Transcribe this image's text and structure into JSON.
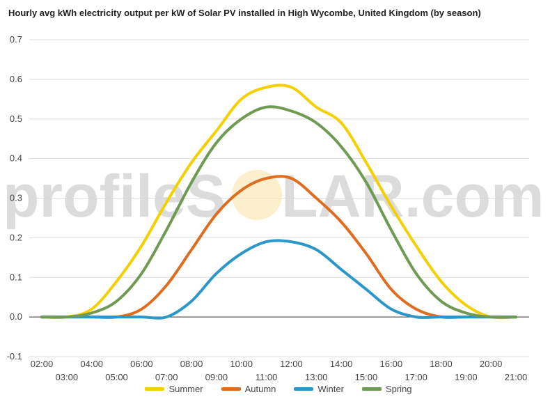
{
  "watermark": {
    "left": "profileS",
    "right": "LAR.com"
  },
  "chart_data": {
    "type": "line",
    "title": "Hourly avg kWh electricity output per kW of Solar PV installed in High Wycombe, United Kingdom (by season)",
    "xlabel": "",
    "ylabel": "",
    "ylim": [
      -0.1,
      0.7
    ],
    "yticks": [
      "-0.1",
      "0.0",
      "0.1",
      "0.2",
      "0.3",
      "0.4",
      "0.5",
      "0.6",
      "0.7"
    ],
    "categories": [
      "02:00",
      "03:00",
      "04:00",
      "05:00",
      "06:00",
      "07:00",
      "08:00",
      "09:00",
      "10:00",
      "11:00",
      "12:00",
      "13:00",
      "14:00",
      "15:00",
      "16:00",
      "17:00",
      "18:00",
      "19:00",
      "20:00",
      "21:00"
    ],
    "grid": true,
    "legend": "bottom",
    "series": [
      {
        "name": "Summer",
        "color": "#f5d000",
        "values": [
          0.0,
          0.0,
          0.02,
          0.09,
          0.18,
          0.29,
          0.39,
          0.47,
          0.55,
          0.58,
          0.58,
          0.53,
          0.49,
          0.39,
          0.28,
          0.18,
          0.09,
          0.03,
          0.0,
          0.0
        ]
      },
      {
        "name": "Autumn",
        "color": "#e06c1f",
        "values": [
          0.0,
          0.0,
          0.0,
          0.0,
          0.02,
          0.08,
          0.17,
          0.26,
          0.32,
          0.35,
          0.35,
          0.3,
          0.24,
          0.16,
          0.07,
          0.02,
          0.0,
          0.0,
          0.0,
          0.0
        ]
      },
      {
        "name": "Winter",
        "color": "#2a96c9",
        "values": [
          0.0,
          0.0,
          0.0,
          0.0,
          0.0,
          0.0,
          0.04,
          0.11,
          0.16,
          0.19,
          0.19,
          0.17,
          0.12,
          0.07,
          0.02,
          0.0,
          0.0,
          0.0,
          0.0,
          0.0
        ]
      },
      {
        "name": "Spring",
        "color": "#6e9a52",
        "values": [
          0.0,
          0.0,
          0.01,
          0.04,
          0.11,
          0.22,
          0.34,
          0.44,
          0.5,
          0.53,
          0.52,
          0.49,
          0.43,
          0.34,
          0.22,
          0.11,
          0.04,
          0.01,
          0.0,
          0.0
        ]
      }
    ]
  }
}
